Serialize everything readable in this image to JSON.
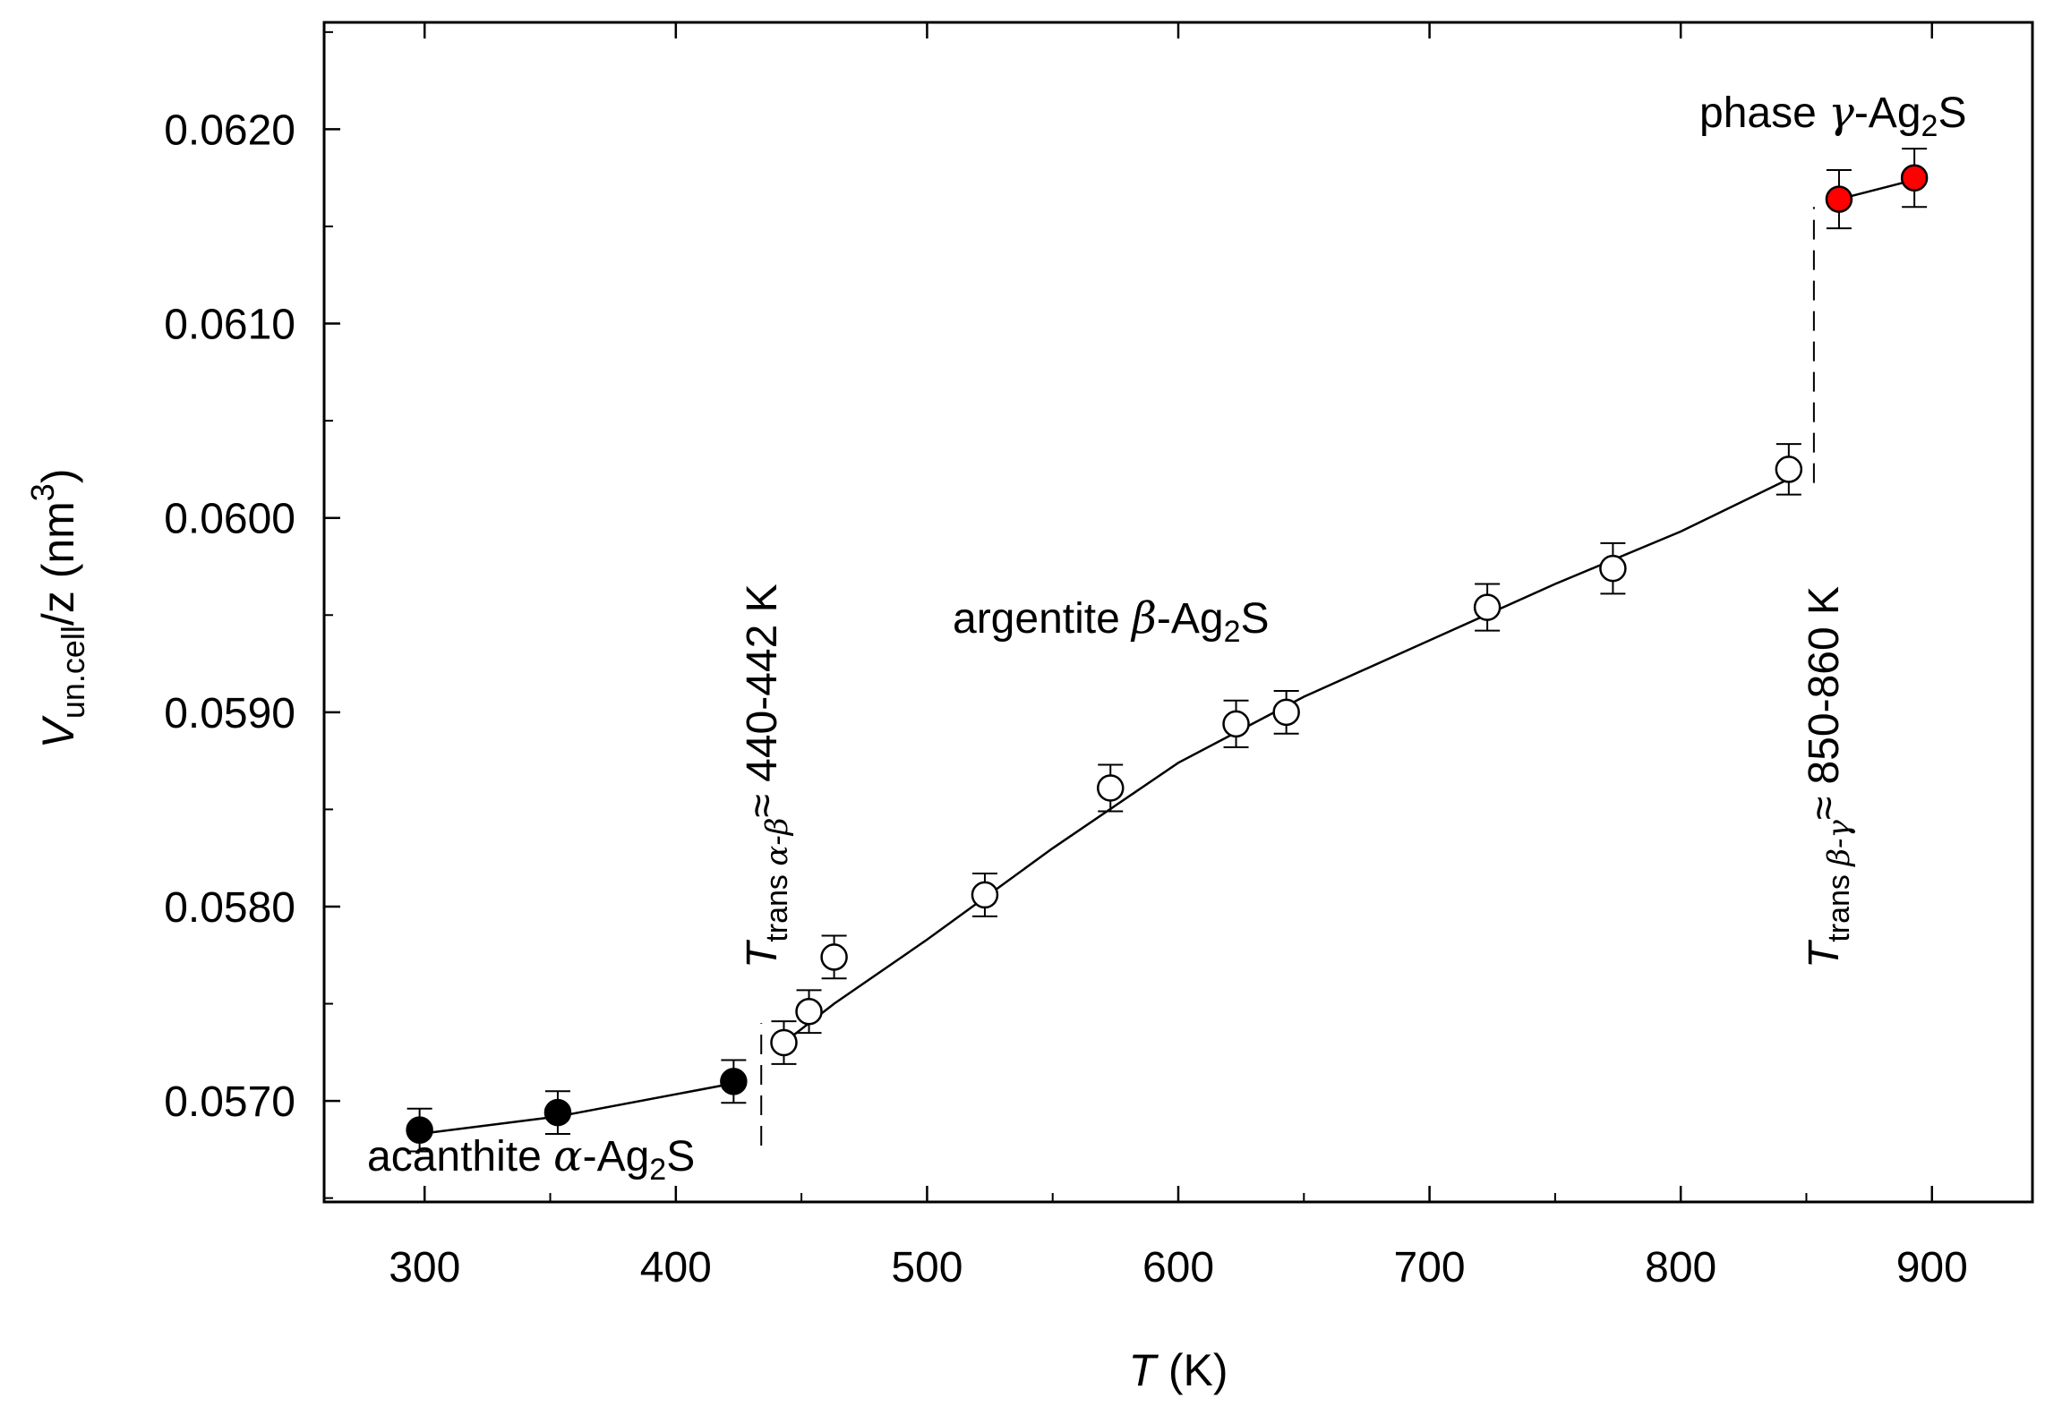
{
  "chart_data": {
    "type": "scatter",
    "xlabel_var": "T",
    "xlabel_unit": " (K)",
    "ylabel_var": "V",
    "ylabel_sub": "un.cell",
    "ylabel_rest": "/z  (nm",
    "ylabel_sup": "3",
    "ylabel_close": ")",
    "xlim": [
      260,
      940
    ],
    "ylim": [
      0.05648,
      0.06255
    ],
    "x_ticks": [
      300,
      400,
      500,
      600,
      700,
      800,
      900
    ],
    "x_tick_labels": [
      "300",
      "400",
      "500",
      "600",
      "700",
      "800",
      "900"
    ],
    "x_minor_ticks": [
      350,
      450,
      550,
      650,
      750,
      850
    ],
    "y_ticks": [
      0.057,
      0.058,
      0.059,
      0.06,
      0.061,
      0.062
    ],
    "y_tick_labels": [
      "0.0570",
      "0.0580",
      "0.0590",
      "0.0600",
      "0.0610",
      "0.0620"
    ],
    "y_minor_ticks": [
      0.0565,
      0.0575,
      0.0585,
      0.0595,
      0.0605,
      0.0615,
      0.0625
    ],
    "grid": false,
    "series": [
      {
        "name": "acanthite α-Ag2S",
        "marker": "filled-black",
        "color": "#000000",
        "points": [
          {
            "x": 298,
            "y": 0.05685,
            "err": 0.00011
          },
          {
            "x": 353,
            "y": 0.05694,
            "err": 0.00011
          },
          {
            "x": 423,
            "y": 0.0571,
            "err": 0.00011
          }
        ]
      },
      {
        "name": "argentite β-Ag2S",
        "marker": "open-circle",
        "color": "#ffffff",
        "points": [
          {
            "x": 443,
            "y": 0.0573,
            "err": 0.00011
          },
          {
            "x": 453,
            "y": 0.05746,
            "err": 0.00011
          },
          {
            "x": 463,
            "y": 0.05774,
            "err": 0.00011
          },
          {
            "x": 523,
            "y": 0.05806,
            "err": 0.00011
          },
          {
            "x": 573,
            "y": 0.05861,
            "err": 0.00012
          },
          {
            "x": 623,
            "y": 0.05894,
            "err": 0.00012
          },
          {
            "x": 643,
            "y": 0.059,
            "err": 0.00011
          },
          {
            "x": 723,
            "y": 0.05954,
            "err": 0.00012
          },
          {
            "x": 773,
            "y": 0.05974,
            "err": 0.00013
          },
          {
            "x": 843,
            "y": 0.06025,
            "err": 0.00013
          }
        ]
      },
      {
        "name": "phase γ-Ag2S",
        "marker": "filled-red",
        "color": "#ff0000",
        "points": [
          {
            "x": 863,
            "y": 0.06164,
            "err": 0.00015
          },
          {
            "x": 893,
            "y": 0.06175,
            "err": 0.00015
          }
        ]
      }
    ],
    "fit_lines": [
      [
        [
          298,
          0.05683
        ],
        [
          353,
          0.05692
        ],
        [
          423,
          0.05709
        ]
      ],
      [
        [
          443,
          0.0573
        ],
        [
          463,
          0.0575
        ],
        [
          500,
          0.05783
        ],
        [
          550,
          0.0583
        ],
        [
          600,
          0.05874
        ],
        [
          650,
          0.05908
        ],
        [
          700,
          0.05937
        ],
        [
          750,
          0.05966
        ],
        [
          800,
          0.05993
        ],
        [
          843,
          0.0602
        ]
      ],
      [
        [
          863,
          0.06164
        ],
        [
          893,
          0.06174
        ]
      ]
    ],
    "transitions": [
      {
        "x": 434,
        "y_from": 0.05677,
        "y_to": 0.0574,
        "label_var": "T",
        "label_sub1": "trans ",
        "label_sub2": "α-β",
        "label_rest": "≈ 440-442 K"
      },
      {
        "x": 853,
        "y_from": 0.06018,
        "y_to": 0.0616,
        "label_var": "T",
        "label_sub1": "trans ",
        "label_sub2": "β-γ",
        "label_rest": "≈ 850-860 K"
      }
    ],
    "annotations": [
      {
        "id": "acanthite",
        "pre": "acanthite ",
        "greek": "α",
        "mid": "-Ag",
        "sub": "2",
        "post": "S"
      },
      {
        "id": "argentite",
        "pre": "argentite ",
        "greek": "β",
        "mid": "-Ag",
        "sub": "2",
        "post": "S"
      },
      {
        "id": "gamma",
        "pre": "phase ",
        "greek": "γ",
        "mid": "-Ag",
        "sub": "2",
        "post": "S"
      }
    ]
  }
}
